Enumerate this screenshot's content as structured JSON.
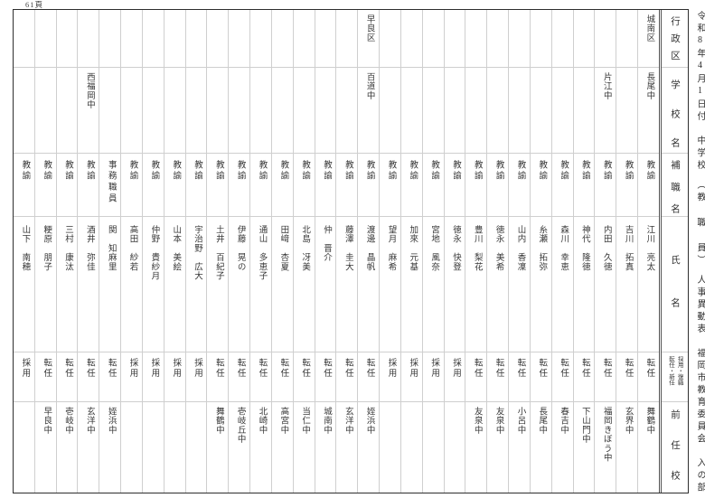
{
  "page_label": "61頁",
  "doc_title": "令和8年4月1日付　中学校　（教 職 員）　人事異動表　福岡市教育委員会　入の部",
  "header": {
    "district": "行政区",
    "school": "学校名",
    "position": "補職名",
    "name": "氏名",
    "appointment_line1": "採用・復職",
    "appointment_line2": "転任・新任",
    "prev_school": "前任校"
  },
  "colors": {
    "outer_border": "#2e2e2e",
    "grid_line": "#cfcfcf",
    "text": "#383838",
    "background": "#ffffff"
  },
  "columns": [
    {
      "district": "",
      "school": "",
      "position": "教諭",
      "name": "山下　南穂",
      "type": "採用",
      "prev": ""
    },
    {
      "district": "",
      "school": "",
      "position": "教諭",
      "name": "粳原　朋子",
      "type": "転任",
      "prev": "早良中"
    },
    {
      "district": "",
      "school": "",
      "position": "教諭",
      "name": "三村　康汰",
      "type": "転任",
      "prev": "壱岐中"
    },
    {
      "district": "",
      "school": "西福岡中",
      "position": "教諭",
      "name": "酒井　弥佳",
      "type": "転任",
      "prev": "玄洋中"
    },
    {
      "district": "",
      "school": "",
      "position": "事務職員",
      "name": "関　知麻里",
      "type": "転任",
      "prev": "姪浜中"
    },
    {
      "district": "",
      "school": "",
      "position": "教諭",
      "name": "高田　紗若",
      "type": "採用",
      "prev": ""
    },
    {
      "district": "",
      "school": "",
      "position": "教諭",
      "name": "仲野　貴紗月",
      "type": "採用",
      "prev": ""
    },
    {
      "district": "",
      "school": "",
      "position": "教諭",
      "name": "山本　美絵",
      "type": "採用",
      "prev": ""
    },
    {
      "district": "",
      "school": "",
      "position": "教諭",
      "name": "宇治野　広大",
      "type": "採用",
      "prev": ""
    },
    {
      "district": "",
      "school": "",
      "position": "教諭",
      "name": "土井　百紀子",
      "type": "転任",
      "prev": "舞鶴中"
    },
    {
      "district": "",
      "school": "",
      "position": "教諭",
      "name": "伊藤　晃の",
      "type": "転任",
      "prev": "壱岐丘中"
    },
    {
      "district": "",
      "school": "",
      "position": "教諭",
      "name": "通山　多恵子",
      "type": "転任",
      "prev": "北崎中"
    },
    {
      "district": "",
      "school": "",
      "position": "教諭",
      "name": "田﨑　杏夏",
      "type": "転任",
      "prev": "高宮中"
    },
    {
      "district": "",
      "school": "",
      "position": "教諭",
      "name": "北島　冴美",
      "type": "転任",
      "prev": "当仁中"
    },
    {
      "district": "",
      "school": "",
      "position": "教諭",
      "name": "仲　晋介",
      "type": "転任",
      "prev": "城南中"
    },
    {
      "district": "",
      "school": "",
      "position": "教諭",
      "name": "藤澤　圭大",
      "type": "転任",
      "prev": "玄洋中"
    },
    {
      "district": "早良区",
      "school": "百道中",
      "position": "教諭",
      "name": "渡邊　晶帆",
      "type": "転任",
      "prev": "姪浜中"
    },
    {
      "district": "",
      "school": "",
      "position": "教諭",
      "name": "望月　麻希",
      "type": "採用",
      "prev": ""
    },
    {
      "district": "",
      "school": "",
      "position": "教諭",
      "name": "加來　元基",
      "type": "採用",
      "prev": ""
    },
    {
      "district": "",
      "school": "",
      "position": "教諭",
      "name": "宮地　風奈",
      "type": "採用",
      "prev": ""
    },
    {
      "district": "",
      "school": "",
      "position": "教諭",
      "name": "徳永　快登",
      "type": "採用",
      "prev": ""
    },
    {
      "district": "",
      "school": "",
      "position": "教諭",
      "name": "豊川　梨花",
      "type": "転任",
      "prev": "友泉中"
    },
    {
      "district": "",
      "school": "",
      "position": "教諭",
      "name": "徳永　美希",
      "type": "転任",
      "prev": "友泉中"
    },
    {
      "district": "",
      "school": "",
      "position": "教諭",
      "name": "山内　香凜",
      "type": "転任",
      "prev": "小呂中"
    },
    {
      "district": "",
      "school": "",
      "position": "教諭",
      "name": "糸瀬　拓弥",
      "type": "転任",
      "prev": "長尾中"
    },
    {
      "district": "",
      "school": "",
      "position": "教諭",
      "name": "森川　幸恵",
      "type": "転任",
      "prev": "春吉中"
    },
    {
      "district": "",
      "school": "",
      "position": "教諭",
      "name": "神代　隆徳",
      "type": "転任",
      "prev": "下山門中"
    },
    {
      "district": "",
      "school": "片江中",
      "position": "教諭",
      "name": "内田　久徳",
      "type": "転任",
      "prev": "福岡きぼう中"
    },
    {
      "district": "",
      "school": "",
      "position": "教諭",
      "name": "吉川　拓真",
      "type": "転任",
      "prev": "玄界中"
    },
    {
      "district": "城南区",
      "school": "長尾中",
      "position": "教諭",
      "name": "江川　亮太",
      "type": "転任",
      "prev": "舞鶴中"
    }
  ]
}
